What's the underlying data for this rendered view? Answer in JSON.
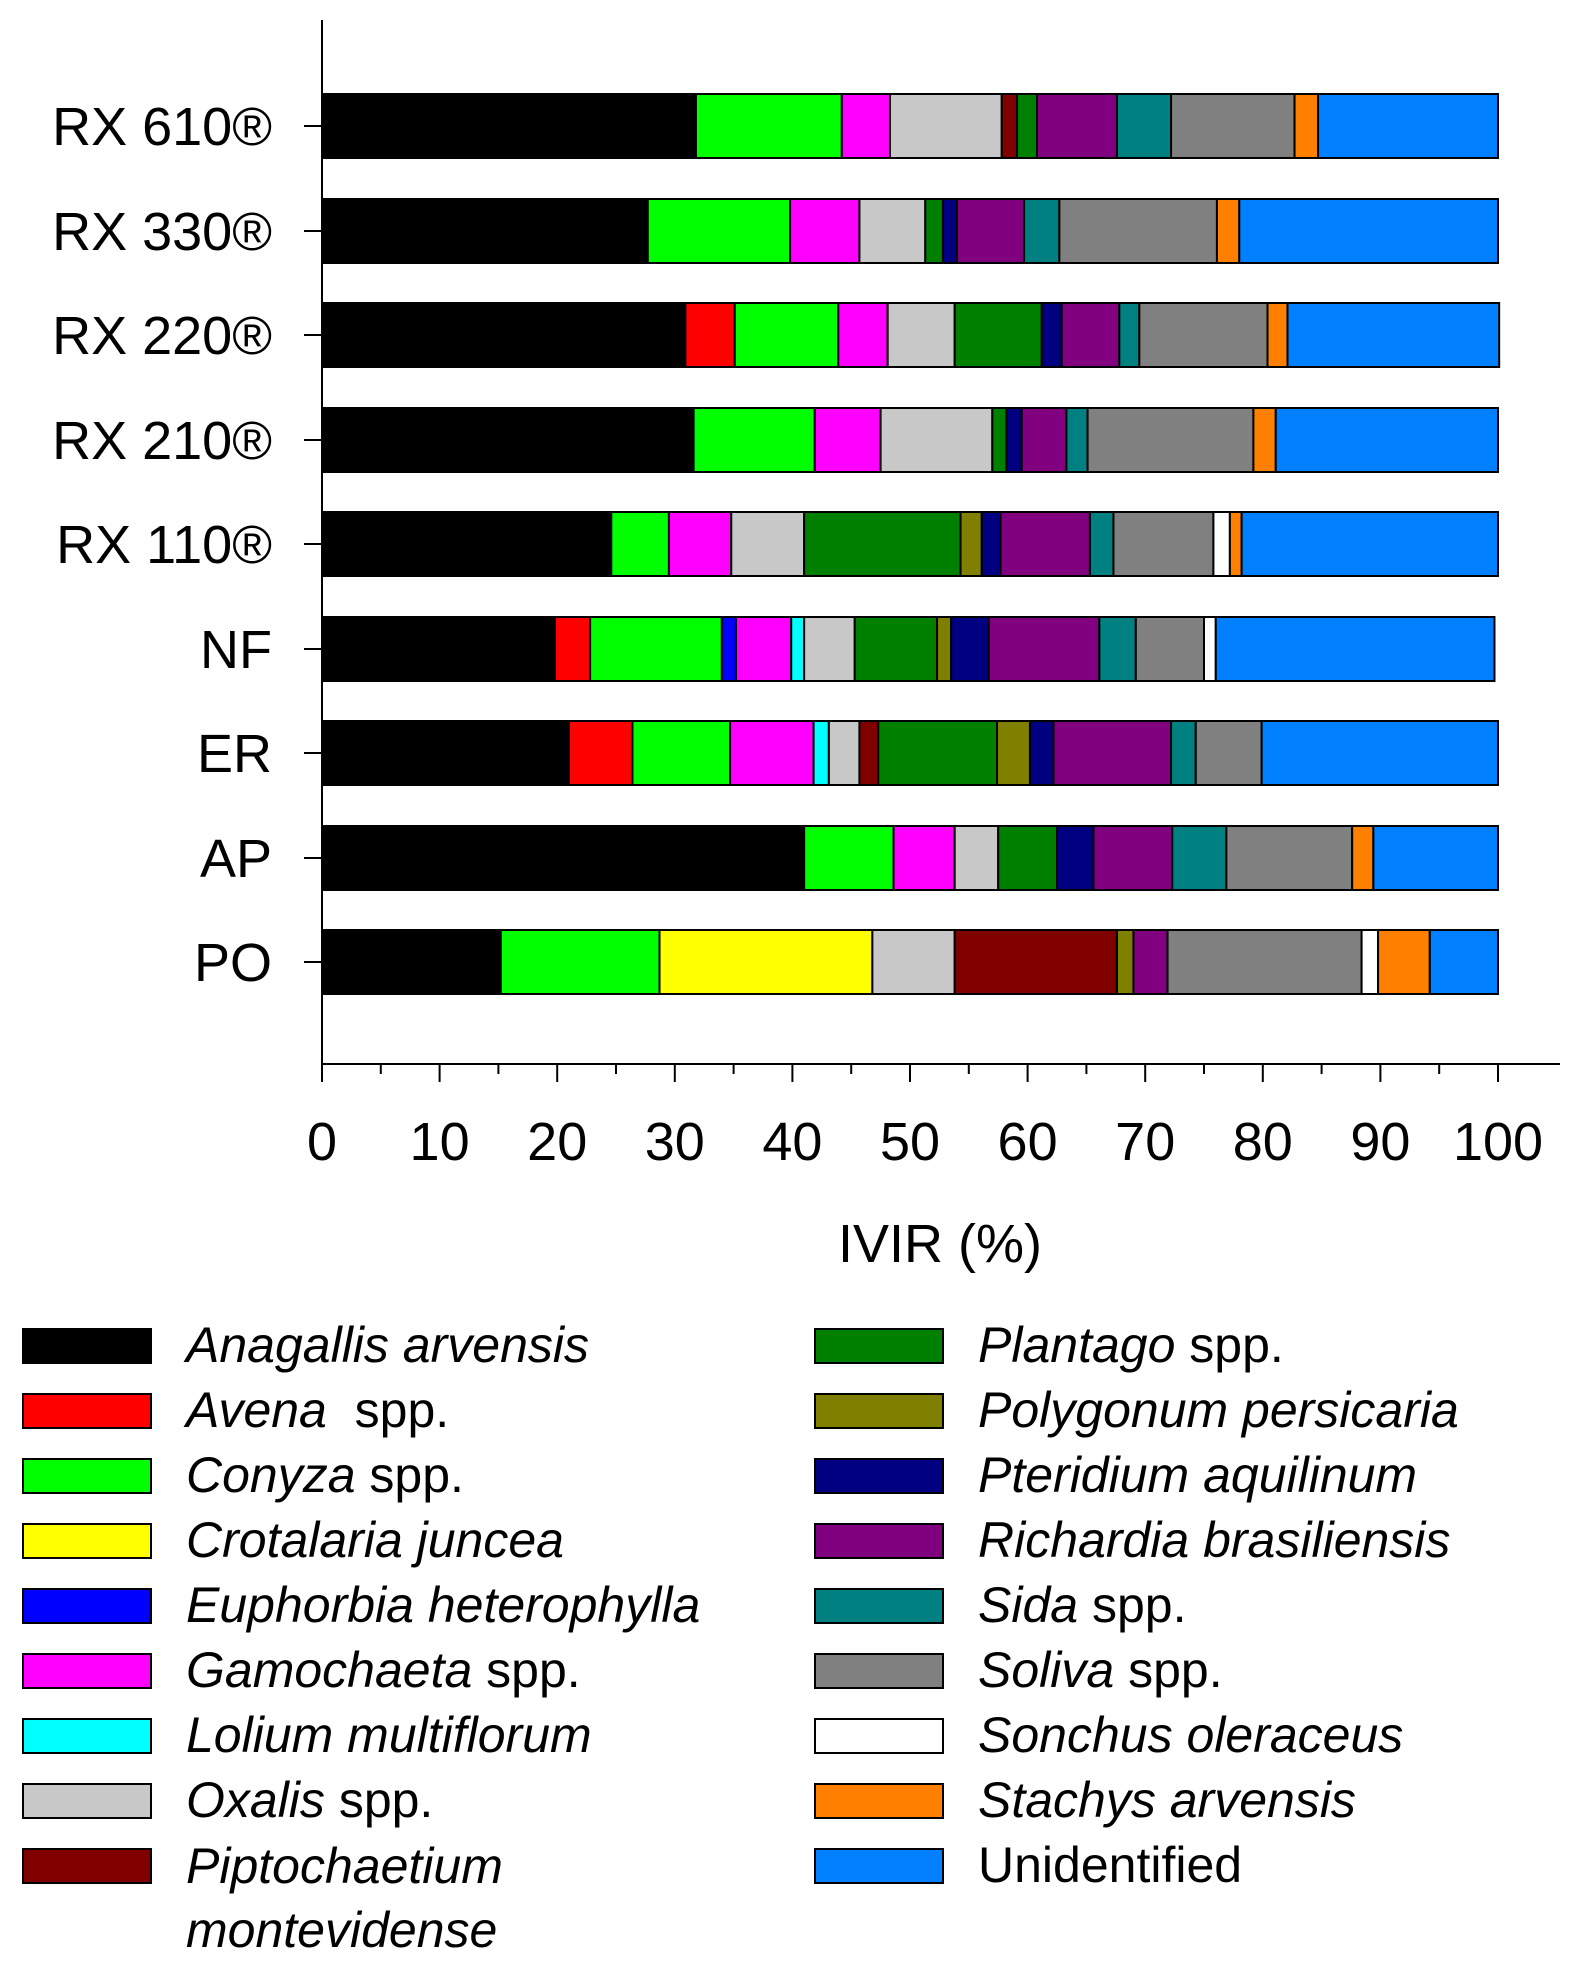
{
  "chart_data": {
    "type": "bar",
    "orientation": "horizontal",
    "stacked": true,
    "title": "",
    "xlabel": "IVIR (%)",
    "ylabel": "",
    "xlim": [
      0,
      100
    ],
    "xticks": [
      "0",
      "10",
      "20",
      "30",
      "40",
      "50",
      "60",
      "70",
      "80",
      "90",
      "100"
    ],
    "categories": [
      "RX 610®",
      "RX 330®",
      "RX 220®",
      "RX 210®",
      "RX 110®",
      "NF",
      "ER",
      "AP",
      "PO"
    ],
    "series": [
      {
        "name": "Anagallis arvensis",
        "italic": "Anagallis arvensis",
        "suffix": "",
        "color": "#000000",
        "values": [
          31.8,
          27.7,
          30.9,
          31.6,
          24.6,
          19.8,
          21.0,
          41.0,
          15.2
        ]
      },
      {
        "name": "Avena spp.",
        "italic": "Avena",
        "suffix": "  spp.",
        "color": "#ff0000",
        "values": [
          0,
          0,
          4.2,
          0,
          0,
          3.0,
          5.4,
          0,
          0
        ]
      },
      {
        "name": "Conyza spp.",
        "italic": "Conyza",
        "suffix": " spp.",
        "color": "#00ff00",
        "values": [
          12.4,
          12.1,
          8.8,
          10.3,
          4.9,
          11.2,
          8.3,
          7.6,
          13.5
        ]
      },
      {
        "name": "Crotalaria juncea",
        "italic": "Crotalaria juncea",
        "suffix": "",
        "color": "#ffff00",
        "values": [
          0,
          0,
          0,
          0,
          0,
          0,
          0,
          0,
          18.1
        ]
      },
      {
        "name": "Euphorbia heterophylla",
        "italic": "Euphorbia heterophylla",
        "suffix": "",
        "color": "#0000ff",
        "values": [
          0,
          0,
          0,
          0,
          0,
          1.2,
          0,
          0,
          0
        ]
      },
      {
        "name": "Gamochaeta spp.",
        "italic": "Gamochaeta",
        "suffix": " spp.",
        "color": "#ff00ff",
        "values": [
          4.1,
          5.9,
          4.2,
          5.6,
          5.3,
          4.7,
          7.1,
          5.2,
          0
        ]
      },
      {
        "name": "Lolium multiflorum",
        "italic": "Lolium multiflorum",
        "suffix": "",
        "color": "#00ffff",
        "values": [
          0,
          0,
          0,
          0,
          0,
          1.1,
          1.3,
          0,
          0
        ]
      },
      {
        "name": "Oxalis spp.",
        "italic": "Oxalis",
        "suffix": " spp.",
        "color": "#c8c8c8",
        "values": [
          9.5,
          5.6,
          5.7,
          9.5,
          6.2,
          4.3,
          2.6,
          3.7,
          7.0
        ]
      },
      {
        "name": "Piptochaetium montevidense",
        "italic": "Piptochaetium montevidense",
        "suffix": "",
        "color": "#800000",
        "values": [
          1.3,
          0,
          0,
          0,
          0,
          0,
          1.6,
          0,
          13.8
        ]
      },
      {
        "name": "Plantago spp.",
        "italic": "Plantago",
        "suffix": " spp.",
        "color": "#008000",
        "values": [
          1.7,
          1.5,
          7.4,
          1.2,
          13.3,
          7.0,
          10.1,
          5.0,
          0
        ]
      },
      {
        "name": "Polygonum persicaria",
        "italic": "Polygonum persicaria",
        "suffix": "",
        "color": "#808000",
        "values": [
          0,
          0,
          0,
          0,
          1.8,
          1.2,
          2.8,
          0,
          1.4
        ]
      },
      {
        "name": "Pteridium aquilinum",
        "italic": "Pteridium aquilinum",
        "suffix": "",
        "color": "#000080",
        "values": [
          0,
          1.2,
          1.7,
          1.3,
          1.6,
          3.2,
          2.0,
          3.1,
          0
        ]
      },
      {
        "name": "Richardia brasiliensis",
        "italic": "Richardia brasiliensis",
        "suffix": "",
        "color": "#800080",
        "values": [
          6.8,
          5.7,
          4.9,
          3.8,
          7.6,
          9.4,
          10.0,
          6.7,
          2.9
        ]
      },
      {
        "name": "Sida spp.",
        "italic": "Sida",
        "suffix": " spp.",
        "color": "#008080",
        "values": [
          4.6,
          3.0,
          1.7,
          1.8,
          2.0,
          3.1,
          2.1,
          4.6,
          0
        ]
      },
      {
        "name": "Soliva spp.",
        "italic": "Soliva",
        "suffix": " spp.",
        "color": "#808080",
        "values": [
          10.5,
          13.4,
          10.9,
          14.1,
          8.5,
          5.8,
          5.6,
          10.7,
          16.5
        ]
      },
      {
        "name": "Sonchus oleraceus",
        "italic": "Sonchus oleraceus",
        "suffix": "",
        "color": "#ffffff",
        "values": [
          0,
          0,
          0,
          0,
          1.4,
          1.0,
          0,
          0,
          1.4
        ]
      },
      {
        "name": "Stachys arvensis",
        "italic": "Stachys arvensis",
        "suffix": "",
        "color": "#ff8000",
        "values": [
          2.0,
          1.9,
          1.7,
          1.9,
          1.0,
          0,
          0,
          1.8,
          4.4
        ]
      },
      {
        "name": "Unidentified",
        "italic": "",
        "suffix": "Unidentified",
        "color": "#0080ff",
        "values": [
          15.3,
          22.0,
          18.0,
          18.9,
          21.8,
          23.7,
          20.1,
          10.6,
          5.8
        ]
      }
    ],
    "legend_position": "bottom",
    "grid": false
  }
}
